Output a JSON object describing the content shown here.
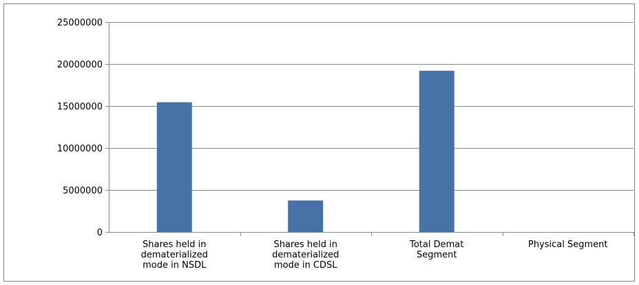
{
  "chart_data": {
    "type": "bar",
    "categories": [
      [
        "Shares held in",
        "dematerialized",
        "mode in NSDL"
      ],
      [
        "Shares held in",
        "dematerialized",
        "mode in CDSL"
      ],
      [
        "Total Demat",
        "Segment"
      ],
      [
        "Physical Segment"
      ]
    ],
    "values": [
      15450000,
      3750000,
      19200000,
      0
    ],
    "ylim": [
      0,
      25000000
    ],
    "yticks": [
      0,
      5000000,
      10000000,
      15000000,
      20000000,
      25000000
    ],
    "ytick_labels": [
      "0",
      "5000000",
      "10000000",
      "15000000",
      "20000000",
      "25000000"
    ],
    "grid": true,
    "legend": "none",
    "bar_color": "#4672a8",
    "grid_color": "#8a8a8a"
  }
}
